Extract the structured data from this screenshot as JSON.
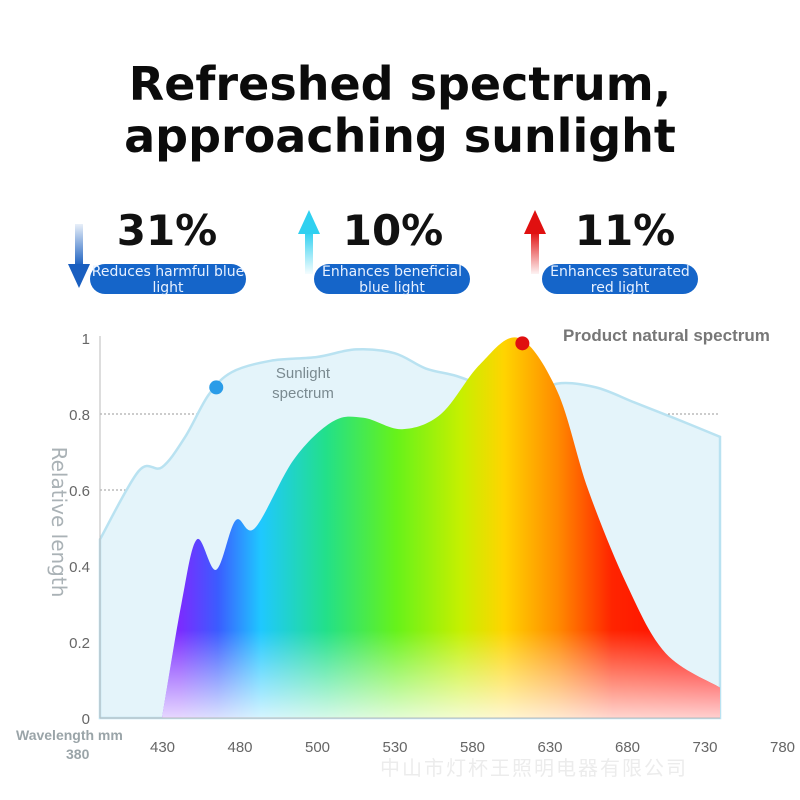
{
  "title_line1": "Refreshed spectrum,",
  "title_line2": "approaching sunlight",
  "stats": [
    {
      "value": "31%",
      "direction": "down",
      "label": "Reduces harmful blue light",
      "arrow_color": "#1a5fc0"
    },
    {
      "value": "10%",
      "direction": "up",
      "label": "Enhances beneficial blue light",
      "arrow_color": "#2fd0f0"
    },
    {
      "value": "11%",
      "direction": "up",
      "label": "Enhances saturated red light",
      "arrow_color": "#e01010"
    }
  ],
  "watermark": "中山市灯杯王照明电器有限公司",
  "chart_data": {
    "type": "area",
    "ylabel": "Relative length",
    "xlabel": "Wavelength mm",
    "x_start_label": "380",
    "yticks": [
      "0",
      "0.2",
      "0.4",
      "0.6",
      "0.8",
      "1"
    ],
    "xticks": [
      "430",
      "480",
      "500",
      "530",
      "580",
      "630",
      "680",
      "730",
      "780"
    ],
    "ylim": [
      0,
      1
    ],
    "grid": true,
    "series": [
      {
        "name": "Sunlight spectrum",
        "color": "#bfe6f2",
        "marker_x_index": 1.5,
        "values": [
          [
            0,
            0.47
          ],
          [
            0.5,
            0.65
          ],
          [
            0.8,
            0.66
          ],
          [
            1.1,
            0.74
          ],
          [
            1.4,
            0.85
          ],
          [
            1.7,
            0.91
          ],
          [
            2.2,
            0.94
          ],
          [
            2.8,
            0.95
          ],
          [
            3.3,
            0.97
          ],
          [
            3.8,
            0.96
          ],
          [
            4.2,
            0.92
          ],
          [
            4.6,
            0.9
          ],
          [
            5.0,
            0.87
          ],
          [
            5.5,
            0.84
          ],
          [
            5.9,
            0.88
          ],
          [
            6.4,
            0.87
          ],
          [
            6.9,
            0.83
          ],
          [
            7.4,
            0.79
          ],
          [
            8.0,
            0.74
          ]
        ]
      },
      {
        "name": "Product natural spectrum",
        "color": "#e11",
        "marker_x_index": 5.45,
        "values": [
          [
            0.8,
            0.0
          ],
          [
            1.05,
            0.3
          ],
          [
            1.25,
            0.47
          ],
          [
            1.5,
            0.39
          ],
          [
            1.75,
            0.52
          ],
          [
            2.0,
            0.5
          ],
          [
            2.5,
            0.68
          ],
          [
            3.0,
            0.78
          ],
          [
            3.4,
            0.79
          ],
          [
            3.9,
            0.76
          ],
          [
            4.4,
            0.8
          ],
          [
            4.9,
            0.93
          ],
          [
            5.4,
            1.0
          ],
          [
            5.9,
            0.86
          ],
          [
            6.3,
            0.6
          ],
          [
            6.8,
            0.35
          ],
          [
            7.3,
            0.17
          ],
          [
            8.0,
            0.08
          ]
        ]
      }
    ]
  }
}
